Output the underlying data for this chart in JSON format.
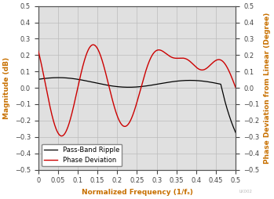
{
  "title": "",
  "xlabel": "Normalized Frequency (1/fₛ)",
  "ylabel_left": "Magnitude (dB)",
  "ylabel_right": "Phase Deviation from Linear (Degree)",
  "legend_labels": [
    "Pass-Band Ripple",
    "Phase Deviation"
  ],
  "xlim": [
    0,
    0.5
  ],
  "ylim": [
    -0.5,
    0.5
  ],
  "xticks": [
    0,
    0.05,
    0.1,
    0.15,
    0.2,
    0.25,
    0.3,
    0.35,
    0.4,
    0.45,
    0.5
  ],
  "yticks": [
    -0.5,
    -0.4,
    -0.3,
    -0.2,
    -0.1,
    0.0,
    0.1,
    0.2,
    0.3,
    0.4,
    0.5
  ],
  "black_line_color": "#000000",
  "red_line_color": "#cc0000",
  "grid_color": "#bbbbbb",
  "background_color": "#e0e0e0",
  "axis_label_color": "#c87000",
  "watermark": "LK002",
  "legend_loc": "lower left",
  "figsize": [
    3.49,
    2.54
  ],
  "dpi": 100
}
